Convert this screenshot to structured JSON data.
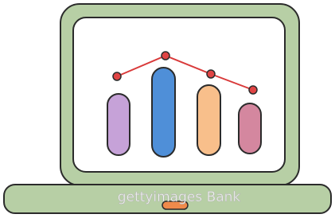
{
  "watermark": "gettyimages Bank"
}
